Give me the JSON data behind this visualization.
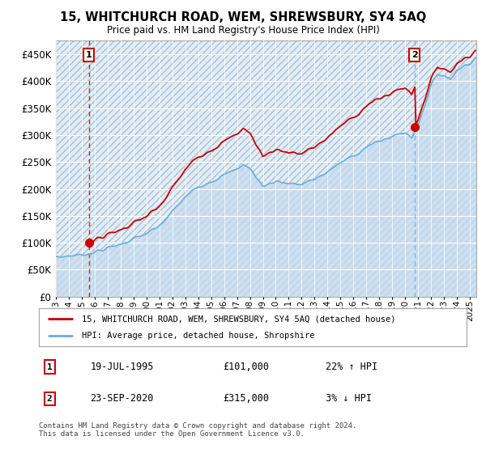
{
  "title1": "15, WHITCHURCH ROAD, WEM, SHREWSBURY, SY4 5AQ",
  "title2": "Price paid vs. HM Land Registry's House Price Index (HPI)",
  "legend_line1": "15, WHITCHURCH ROAD, WEM, SHREWSBURY, SY4 5AQ (detached house)",
  "legend_line2": "HPI: Average price, detached house, Shropshire",
  "annotation1_date": "19-JUL-1995",
  "annotation1_price": "£101,000",
  "annotation1_hpi": "22% ↑ HPI",
  "annotation2_date": "23-SEP-2020",
  "annotation2_price": "£315,000",
  "annotation2_hpi": "3% ↓ HPI",
  "footer": "Contains HM Land Registry data © Crown copyright and database right 2024.\nThis data is licensed under the Open Government Licence v3.0.",
  "sale1_x": 1995.54,
  "sale1_y": 101000,
  "sale2_x": 2020.73,
  "sale2_y": 315000,
  "hpi_color": "#6baed6",
  "hpi_fill_color": "#c6dbef",
  "price_color": "#cc0000",
  "vline1_color": "#cc0000",
  "vline2_color": "#6baed6",
  "ylim": [
    0,
    475000
  ],
  "xlim_left": 1993.0,
  "xlim_right": 2025.5,
  "chart_bg_color": "#ddeeff",
  "hatch_color": "#cccccc",
  "grid_color": "#ffffff"
}
